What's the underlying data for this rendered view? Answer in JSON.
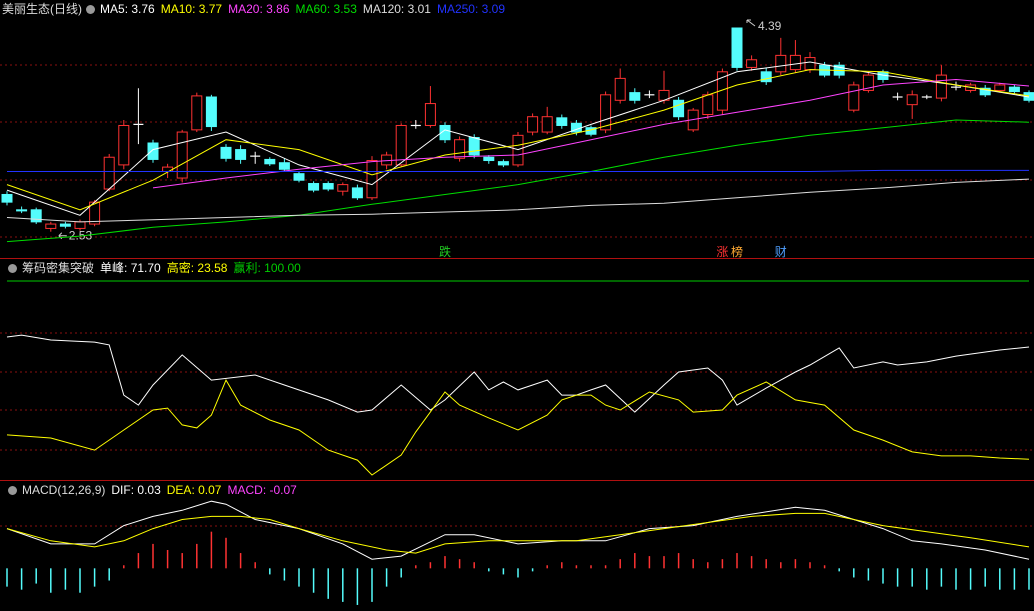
{
  "chart_data": [
    {
      "type": "candlestick",
      "title": "美丽生态(日线)",
      "legend_separator": ": ",
      "up_color": "#ff3232",
      "down_color": "#54fcfc",
      "flat_color": "#ffffff",
      "ylim": [
        2.29,
        4.6
      ],
      "open": [
        2.87,
        2.73,
        2.73,
        2.56,
        2.6,
        2.56,
        2.6,
        2.92,
        3.14,
        3.51,
        3.34,
        3.08,
        3.02,
        3.46,
        3.76,
        3.3,
        3.28,
        3.22,
        3.19,
        3.16,
        3.06,
        2.97,
        2.97,
        2.9,
        2.93,
        2.84,
        3.14,
        3.14,
        3.5,
        3.5,
        3.5,
        3.2,
        3.39,
        3.21,
        3.17,
        3.14,
        3.44,
        3.44,
        3.57,
        3.52,
        3.48,
        3.46,
        3.73,
        3.8,
        3.78,
        3.73,
        3.73,
        3.46,
        3.6,
        3.64,
        4.39,
        4.03,
        3.99,
        3.99,
        4.01,
        4.01,
        4.05,
        4.05,
        3.64,
        3.82,
        3.99,
        3.76,
        3.69,
        3.76,
        3.75,
        3.85,
        3.82,
        3.84,
        3.82,
        3.85,
        3.8
      ],
      "high": [
        2.9,
        2.76,
        2.75,
        2.62,
        2.62,
        2.64,
        2.82,
        3.24,
        3.55,
        3.84,
        3.37,
        3.15,
        3.46,
        3.8,
        3.78,
        3.33,
        3.32,
        3.26,
        3.21,
        3.2,
        3.08,
        2.99,
        2.99,
        2.98,
        2.96,
        3.22,
        3.26,
        3.52,
        3.55,
        3.86,
        3.53,
        3.4,
        3.42,
        3.23,
        3.19,
        3.44,
        3.61,
        3.67,
        3.6,
        3.55,
        3.5,
        3.81,
        4.02,
        3.84,
        3.82,
        4.0,
        3.76,
        3.66,
        3.81,
        4.02,
        4.39,
        4.14,
        4.03,
        4.3,
        4.28,
        4.17,
        4.08,
        4.08,
        3.9,
        3.99,
        4.01,
        3.8,
        3.82,
        3.78,
        4.05,
        3.9,
        3.89,
        3.87,
        3.89,
        3.87,
        3.82
      ],
      "low": [
        2.77,
        2.7,
        2.6,
        2.53,
        2.56,
        2.54,
        2.58,
        2.9,
        3.1,
        3.33,
        3.16,
        3.02,
        2.98,
        3.44,
        3.45,
        3.17,
        3.15,
        3.15,
        3.13,
        3.08,
        2.98,
        2.89,
        2.9,
        2.86,
        2.82,
        2.82,
        3.1,
        3.12,
        3.47,
        3.48,
        3.34,
        3.17,
        3.2,
        3.15,
        3.12,
        3.12,
        3.41,
        3.42,
        3.47,
        3.41,
        3.4,
        3.43,
        3.7,
        3.7,
        3.75,
        3.7,
        3.55,
        3.44,
        3.56,
        3.6,
        4.0,
        4.0,
        3.87,
        3.96,
        3.98,
        3.98,
        3.94,
        3.93,
        3.62,
        3.8,
        3.89,
        3.73,
        3.56,
        3.74,
        3.72,
        3.82,
        3.8,
        3.76,
        3.8,
        3.79,
        3.71
      ],
      "close": [
        2.8,
        2.72,
        2.62,
        2.6,
        2.58,
        2.62,
        2.8,
        3.21,
        3.5,
        3.51,
        3.19,
        3.12,
        3.44,
        3.77,
        3.49,
        3.2,
        3.19,
        3.22,
        3.15,
        3.1,
        3.0,
        2.91,
        2.92,
        2.96,
        2.84,
        3.18,
        3.23,
        3.5,
        3.5,
        3.7,
        3.37,
        3.37,
        3.23,
        3.18,
        3.14,
        3.41,
        3.58,
        3.58,
        3.5,
        3.44,
        3.42,
        3.78,
        3.93,
        3.73,
        3.78,
        3.82,
        3.58,
        3.64,
        3.78,
        3.99,
        4.03,
        4.1,
        3.9,
        4.14,
        4.14,
        4.12,
        3.96,
        3.96,
        3.87,
        3.96,
        3.92,
        3.76,
        3.78,
        3.76,
        3.96,
        3.85,
        3.87,
        3.78,
        3.87,
        3.81,
        3.73
      ],
      "signals": [
        null,
        null,
        null,
        null,
        null,
        null,
        null,
        null,
        null,
        null,
        null,
        null,
        null,
        null,
        null,
        null,
        null,
        null,
        null,
        null,
        null,
        null,
        null,
        null,
        null,
        null,
        null,
        null,
        null,
        null,
        "跌",
        null,
        null,
        null,
        null,
        null,
        null,
        null,
        null,
        null,
        null,
        null,
        null,
        null,
        null,
        null,
        null,
        null,
        null,
        "涨",
        "榜",
        null,
        null,
        "财",
        null,
        null,
        null,
        null,
        null,
        null,
        null,
        null,
        null,
        null,
        null,
        null,
        null,
        null,
        null,
        null,
        null
      ],
      "signal_colors": {
        "跌": "#22cc22",
        "涨": "#ff3232",
        "榜": "#ffaa33",
        "财": "#4f9fff"
      },
      "series": [
        {
          "name": "MA5",
          "color": "#ffffff",
          "value_label": "3.76",
          "x": [
            0,
            5,
            10,
            15,
            20,
            25,
            30,
            35,
            40,
            45,
            50,
            55,
            60,
            65,
            70
          ],
          "values": [
            2.91,
            2.68,
            3.28,
            3.44,
            3.14,
            2.96,
            3.46,
            3.28,
            3.51,
            3.73,
            3.99,
            4.08,
            3.96,
            3.87,
            3.76
          ]
        },
        {
          "name": "MA10",
          "color": "#ffff00",
          "value_label": "3.77",
          "x": [
            0,
            5,
            10,
            15,
            20,
            25,
            30,
            35,
            40,
            45,
            50,
            55,
            60,
            65,
            70
          ],
          "values": [
            2.96,
            2.73,
            3.0,
            3.37,
            3.28,
            3.05,
            3.23,
            3.32,
            3.46,
            3.64,
            3.87,
            4.01,
            3.99,
            3.87,
            3.77
          ]
        },
        {
          "name": "MA20",
          "color": "#ff44ff",
          "value_label": "3.86",
          "x": [
            0,
            5,
            10,
            15,
            20,
            25,
            30,
            35,
            40,
            45,
            50,
            55,
            60,
            65,
            70
          ],
          "values": [
            null,
            null,
            2.93,
            3.02,
            3.1,
            3.17,
            3.21,
            3.23,
            3.37,
            3.51,
            3.62,
            3.73,
            3.87,
            3.92,
            3.86
          ]
        },
        {
          "name": "MA60",
          "color": "#00dd00",
          "value_label": "3.53",
          "x": [
            0,
            5,
            10,
            15,
            20,
            25,
            30,
            35,
            40,
            45,
            50,
            55,
            60,
            65,
            70
          ],
          "values": [
            2.44,
            2.49,
            2.57,
            2.62,
            2.68,
            2.78,
            2.87,
            2.96,
            3.08,
            3.21,
            3.32,
            3.41,
            3.48,
            3.55,
            3.53
          ]
        },
        {
          "name": "MA120",
          "color": "#dddddd",
          "value_label": "3.01",
          "x": [
            0,
            5,
            10,
            15,
            20,
            25,
            30,
            35,
            40,
            45,
            50,
            55,
            60,
            65,
            70
          ],
          "values": [
            2.66,
            2.62,
            2.64,
            2.66,
            2.68,
            2.69,
            2.71,
            2.73,
            2.77,
            2.79,
            2.84,
            2.89,
            2.93,
            2.98,
            3.01
          ]
        },
        {
          "name": "MA250",
          "color": "#2233ff",
          "value_label": "3.09",
          "x": [
            0,
            5,
            10,
            15,
            20,
            25,
            30,
            35,
            40,
            45,
            50,
            55,
            60,
            65,
            70
          ],
          "values": [
            3.08,
            3.08,
            3.08,
            3.08,
            3.08,
            3.08,
            3.08,
            3.08,
            3.08,
            3.08,
            3.08,
            3.08,
            3.09,
            3.09,
            3.09
          ]
        }
      ]
    },
    {
      "type": "line",
      "title": "筹码密集突破",
      "legend_separator": ": ",
      "ylim": [
        16,
        107
      ],
      "series": [
        {
          "name": "单峰",
          "color": "#ffffff",
          "value_label": "71.70",
          "x": [
            0,
            1,
            3,
            6,
            7,
            8,
            9,
            10,
            12,
            14,
            17,
            19,
            22,
            24,
            25,
            27,
            29,
            30,
            32,
            33,
            34,
            35,
            37,
            38,
            39,
            40,
            41,
            43,
            45,
            46,
            48,
            49,
            50,
            52,
            54,
            55,
            57,
            58,
            60,
            61,
            63,
            65,
            68,
            70
          ],
          "values": [
            76.0,
            76.8,
            74.7,
            73.8,
            72.6,
            51.1,
            46.8,
            55.4,
            68.3,
            57.5,
            59.7,
            55.4,
            49.0,
            43.8,
            44.7,
            55.4,
            44.7,
            49.0,
            61.0,
            53.3,
            56.7,
            53.3,
            57.5,
            51.1,
            51.1,
            53.3,
            55.4,
            43.8,
            55.4,
            61.0,
            62.7,
            57.5,
            46.8,
            54.1,
            61.0,
            64.0,
            71.3,
            62.7,
            65.3,
            64.0,
            65.3,
            67.8,
            70.4,
            71.7
          ]
        },
        {
          "name": "高密",
          "color": "#ffff00",
          "value_label": "23.58",
          "x": [
            0,
            3,
            6,
            8,
            10,
            11,
            12,
            13,
            14,
            15,
            16,
            18,
            20,
            22,
            24,
            25,
            27,
            28,
            30,
            31,
            33,
            35,
            37,
            38,
            39,
            40,
            41,
            42,
            44,
            46,
            47,
            49,
            50,
            52,
            54,
            56,
            58,
            60,
            62,
            64,
            66,
            68,
            70
          ],
          "values": [
            34.0,
            32.7,
            27.5,
            36.1,
            44.7,
            45.5,
            38.3,
            37.0,
            42.5,
            57.5,
            46.8,
            40.4,
            36.1,
            27.5,
            23.2,
            16.8,
            25.4,
            35.3,
            52.4,
            46.8,
            41.3,
            36.1,
            42.5,
            49.0,
            51.1,
            51.1,
            46.8,
            44.7,
            52.4,
            49.0,
            43.8,
            44.7,
            51.1,
            56.7,
            49.0,
            46.8,
            36.1,
            31.8,
            26.7,
            25.0,
            25.0,
            24.1,
            23.58
          ]
        },
        {
          "name": "赢利",
          "color": "#00cc00",
          "value_label": "100.00",
          "x": [
            0,
            70
          ],
          "values": [
            100,
            100
          ]
        }
      ]
    },
    {
      "type": "macd",
      "title": "MACD(12,26,9)",
      "legend_separator": ": ",
      "ylim": [
        -0.13,
        0.25
      ],
      "series": [
        {
          "name": "DIF",
          "color": "#ffffff",
          "value_label": "0.03",
          "x": [
            0,
            3,
            6,
            8,
            10,
            12,
            14,
            15,
            17,
            20,
            23,
            25,
            27,
            30,
            32,
            35,
            38,
            41,
            44,
            47,
            50,
            54,
            56,
            58,
            60,
            62,
            64,
            67,
            70
          ],
          "values": [
            0.13,
            0.08,
            0.08,
            0.14,
            0.17,
            0.19,
            0.22,
            0.21,
            0.16,
            0.13,
            0.08,
            0.03,
            0.04,
            0.11,
            0.11,
            0.08,
            0.09,
            0.09,
            0.13,
            0.14,
            0.17,
            0.2,
            0.19,
            0.16,
            0.13,
            0.09,
            0.08,
            0.06,
            0.03
          ]
        },
        {
          "name": "DEA",
          "color": "#ffff00",
          "value_label": "0.07",
          "x": [
            0,
            3,
            6,
            8,
            10,
            12,
            14,
            16,
            18,
            20,
            23,
            26,
            28,
            30,
            33,
            36,
            39,
            42,
            45,
            48,
            51,
            54,
            56,
            58,
            60,
            63,
            66,
            70
          ],
          "values": [
            0.13,
            0.09,
            0.07,
            0.09,
            0.13,
            0.16,
            0.17,
            0.17,
            0.16,
            0.13,
            0.09,
            0.06,
            0.05,
            0.08,
            0.09,
            0.09,
            0.09,
            0.11,
            0.13,
            0.15,
            0.17,
            0.18,
            0.18,
            0.16,
            0.14,
            0.12,
            0.1,
            0.07
          ]
        }
      ],
      "histogram": {
        "name": "MACD",
        "color": "#ff44ff",
        "value_label": "-0.07",
        "up_color": "#ff3232",
        "down_color": "#54fcfc",
        "values": [
          -0.06,
          -0.07,
          -0.05,
          -0.08,
          -0.07,
          -0.08,
          -0.06,
          -0.04,
          0.01,
          0.05,
          0.08,
          0.06,
          0.05,
          0.08,
          0.12,
          0.1,
          0.05,
          0.02,
          -0.02,
          -0.04,
          -0.06,
          -0.08,
          -0.1,
          -0.11,
          -0.12,
          -0.11,
          -0.06,
          -0.03,
          0.01,
          0.02,
          0.04,
          0.03,
          0.02,
          -0.01,
          -0.02,
          -0.03,
          -0.01,
          0.01,
          0.02,
          0.01,
          0.01,
          0.01,
          0.03,
          0.05,
          0.04,
          0.04,
          0.05,
          0.03,
          0.02,
          0.03,
          0.05,
          0.04,
          0.03,
          0.02,
          0.03,
          0.02,
          0.01,
          -0.01,
          -0.03,
          -0.04,
          -0.05,
          -0.06,
          -0.06,
          -0.07,
          -0.06,
          -0.07,
          -0.07,
          -0.06,
          -0.07,
          -0.07,
          -0.07
        ]
      }
    }
  ]
}
